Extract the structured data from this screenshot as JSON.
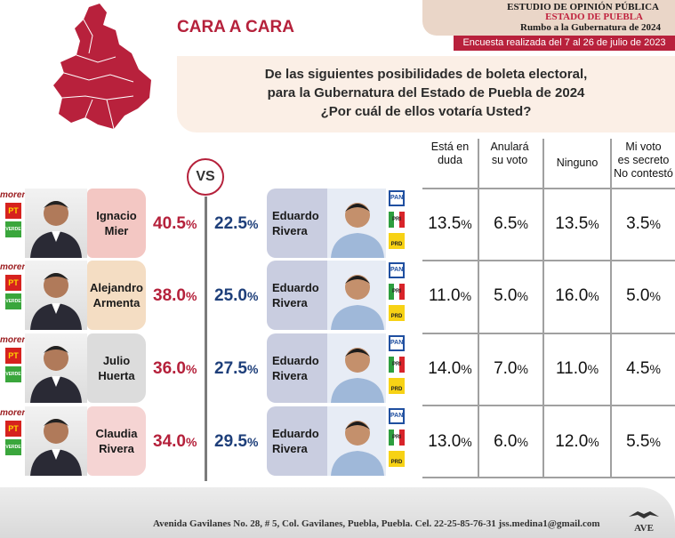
{
  "header": {
    "cara_title": "CARA A CARA",
    "line1": "ESTUDIO DE OPINIÓN PÚBLICA",
    "line2": "ESTADO DE PUEBLA",
    "line3": "Rumbo a la Gubernatura de 2024",
    "date": "Encuesta realizada del 7 al 26 de julio de 2023"
  },
  "question": {
    "l1": "De las siguientes posibilidades de boleta electoral,",
    "l2": "para la Gubernatura del Estado de Puebla de 2024",
    "l3": "¿Por cuál de ellos votaría Usted?"
  },
  "vs": "VS",
  "parties": {
    "morena": "morena",
    "pt": "PT",
    "verde": "VERDE",
    "pan": "PAN",
    "pri": "PRI",
    "prd": "PRD"
  },
  "colors": {
    "accent": "#b5213b",
    "blue": "#1e3f7a"
  },
  "chart_data": {
    "type": "table",
    "columns": [
      "Está en duda",
      "Anulará su voto",
      "Ninguno",
      "Mi voto es secreto No contestó"
    ],
    "rows": [
      {
        "left_l1": "Ignacio",
        "left_l2": "Mier",
        "left": "40.5",
        "right": "22.5",
        "right_l1": "Eduardo",
        "right_l2": "Rivera",
        "duda": "13.5",
        "anulara": "6.5",
        "ninguno": "13.5",
        "secreto": "3.5"
      },
      {
        "left_l1": "Alejandro",
        "left_l2": "Armenta",
        "left": "38.0",
        "right": "25.0",
        "right_l1": "Eduardo",
        "right_l2": "Rivera",
        "duda": "11.0",
        "anulara": "5.0",
        "ninguno": "16.0",
        "secreto": "5.0"
      },
      {
        "left_l1": "Julio",
        "left_l2": "Huerta",
        "left": "36.0",
        "right": "27.5",
        "right_l1": "Eduardo",
        "right_l2": "Rivera",
        "duda": "14.0",
        "anulara": "7.0",
        "ninguno": "11.0",
        "secreto": "4.5"
      },
      {
        "left_l1": "Claudia",
        "left_l2": "Rivera",
        "left": "34.0",
        "right": "29.5",
        "right_l1": "Eduardo",
        "right_l2": "Rivera",
        "duda": "13.0",
        "anulara": "6.0",
        "ninguno": "12.0",
        "secreto": "5.5"
      }
    ]
  },
  "headers": {
    "h1a": "Está en",
    "h1b": "duda",
    "h2a": "Anulará",
    "h2b": "su voto",
    "h3": "Ninguno",
    "h4a": "Mi voto",
    "h4b": "es secreto",
    "h4c": "No contestó"
  },
  "footer": {
    "address": "Avenida Gavilanes No. 28, # 5, Col. Gavilanes, Puebla, Puebla. Cel. 22-25-85-76-31  jss.medina1@gmail.com",
    "logo": "AVE"
  }
}
